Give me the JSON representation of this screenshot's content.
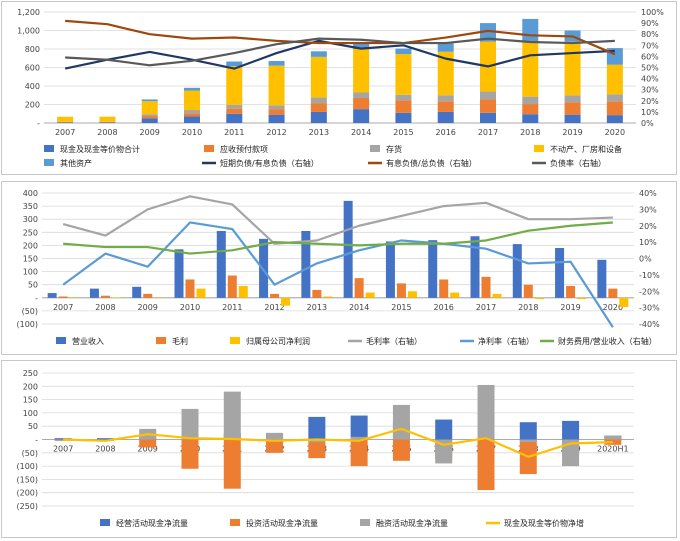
{
  "colors": {
    "blue": "#4472c4",
    "orange": "#ed7d31",
    "gray": "#a5a5a5",
    "yellow": "#ffc000",
    "lightblue": "#5b9bd5",
    "darkblue": "#203864",
    "rust": "#9e480e",
    "darkgray": "#595959",
    "green": "#70ad47"
  },
  "chart_data": [
    {
      "type": "bar",
      "stacked": true,
      "categories": [
        "2007",
        "2008",
        "2009",
        "2010",
        "2011",
        "2012",
        "2013",
        "2014",
        "2015",
        "2016",
        "2017",
        "2018",
        "2019",
        "2020"
      ],
      "y_ticks": [
        "-",
        "200",
        "400",
        "600",
        "800",
        "1,000",
        "1,200"
      ],
      "y2_ticks": [
        "0%",
        "10%",
        "20%",
        "30%",
        "40%",
        "50%",
        "60%",
        "70%",
        "80%",
        "90%",
        "100%"
      ],
      "ylim": [
        0,
        1200
      ],
      "y2lim": [
        0,
        1
      ],
      "grid": true,
      "legend_position": "bottom",
      "bar_series": [
        {
          "name": "现金及现金等价物合计",
          "color_key": "blue",
          "values": [
            5,
            5,
            50,
            70,
            100,
            90,
            120,
            150,
            110,
            120,
            110,
            95,
            90,
            85
          ]
        },
        {
          "name": "应收预付款项",
          "color_key": "orange",
          "values": [
            5,
            5,
            25,
            35,
            55,
            60,
            95,
            120,
            135,
            115,
            145,
            110,
            135,
            150
          ]
        },
        {
          "name": "存货",
          "color_key": "gray",
          "values": [
            3,
            3,
            20,
            35,
            40,
            40,
            60,
            60,
            60,
            65,
            85,
            80,
            75,
            75
          ]
        },
        {
          "name": "不动产、厂房和设备",
          "color_key": "yellow",
          "values": [
            55,
            55,
            140,
            210,
            420,
            430,
            440,
            470,
            440,
            470,
            540,
            600,
            580,
            320
          ]
        },
        {
          "name": "其他资产",
          "color_key": "lightblue",
          "values": [
            0,
            0,
            20,
            30,
            50,
            50,
            60,
            70,
            60,
            90,
            200,
            240,
            120,
            180
          ]
        }
      ],
      "line_series": [
        {
          "name": "短期负债/有息负债（右轴）",
          "color_key": "darkblue",
          "values": [
            0.49,
            0.57,
            0.64,
            0.57,
            0.49,
            0.63,
            0.74,
            0.67,
            0.7,
            0.58,
            0.51,
            0.61,
            0.63,
            0.65
          ]
        },
        {
          "name": "有息负债/总负债（右轴）",
          "color_key": "rust",
          "values": [
            0.92,
            0.89,
            0.8,
            0.76,
            0.77,
            0.74,
            0.72,
            0.72,
            0.72,
            0.77,
            0.83,
            0.79,
            0.78,
            0.62
          ]
        },
        {
          "name": "负债率（右轴）",
          "color_key": "darkgray",
          "values": [
            0.59,
            0.57,
            0.52,
            0.56,
            0.63,
            0.71,
            0.76,
            0.75,
            0.72,
            0.72,
            0.76,
            0.73,
            0.72,
            0.74
          ]
        }
      ]
    },
    {
      "type": "bar",
      "categories": [
        "2007",
        "2008",
        "2009",
        "2010",
        "2011",
        "2012",
        "2013",
        "2014",
        "2015",
        "2016",
        "2017",
        "2018",
        "2019",
        "2020"
      ],
      "y_ticks": [
        "400",
        "350",
        "300",
        "250",
        "200",
        "150",
        "100",
        "50",
        "-",
        "(50)",
        "(100)"
      ],
      "y2_ticks": [
        "40%",
        "30%",
        "20%",
        "10%",
        "0%",
        "-10%",
        "-20%",
        "-30%",
        "-40%"
      ],
      "ylim": [
        -100,
        400
      ],
      "y2lim": [
        -0.4,
        0.4
      ],
      "grid": true,
      "legend_position": "bottom",
      "bar_series": [
        {
          "name": "营业收入",
          "color_key": "blue",
          "values": [
            18,
            35,
            42,
            185,
            255,
            225,
            255,
            370,
            215,
            220,
            235,
            205,
            190,
            145
          ]
        },
        {
          "name": "毛利",
          "color_key": "orange",
          "values": [
            5,
            8,
            15,
            70,
            85,
            15,
            30,
            75,
            55,
            70,
            80,
            50,
            45,
            35
          ]
        },
        {
          "name": "归属母公司净利润",
          "color_key": "yellow",
          "values": [
            2,
            1,
            2,
            35,
            45,
            -30,
            5,
            20,
            25,
            20,
            15,
            -5,
            -5,
            -35
          ]
        }
      ],
      "line_series": [
        {
          "name": "毛利率（右轴）",
          "color_key": "gray",
          "values": [
            0.21,
            0.14,
            0.3,
            0.38,
            0.33,
            0.09,
            0.11,
            0.2,
            0.26,
            0.32,
            0.34,
            0.24,
            0.24,
            0.25
          ]
        },
        {
          "name": "净利率（右轴）",
          "color_key": "lightblue",
          "values": [
            -0.16,
            0.03,
            -0.05,
            0.22,
            0.18,
            -0.16,
            -0.03,
            0.05,
            0.11,
            0.09,
            0.06,
            -0.03,
            -0.02,
            -0.42
          ]
        },
        {
          "name": "财务费用/营业收入（右轴）",
          "color_key": "green",
          "values": [
            0.09,
            0.07,
            0.07,
            0.03,
            0.05,
            0.1,
            0.09,
            0.08,
            0.09,
            0.09,
            0.11,
            0.17,
            0.2,
            0.22
          ]
        }
      ]
    },
    {
      "type": "bar",
      "categories": [
        "2007",
        "2008",
        "2009",
        "2010",
        "2011",
        "2012",
        "2013",
        "2014",
        "2015",
        "2016",
        "2017",
        "2018",
        "2019",
        "2020H1"
      ],
      "y_ticks": [
        "250",
        "200",
        "150",
        "100",
        "50",
        "-",
        "(50)",
        "(100)",
        "(150)",
        "(200)",
        "(250)"
      ],
      "ylim": [
        -250,
        250
      ],
      "grid": true,
      "legend_position": "bottom",
      "bar_series": [
        {
          "name": "经营活动现金净流量",
          "color_key": "blue",
          "values": [
            5,
            5,
            15,
            75,
            25,
            20,
            85,
            90,
            65,
            75,
            85,
            65,
            70,
            15
          ]
        },
        {
          "name": "投资活动现金净流量",
          "color_key": "orange",
          "values": [
            -5,
            -5,
            -30,
            -110,
            -185,
            -50,
            -70,
            -100,
            -80,
            -75,
            -190,
            -130,
            -60,
            -20
          ]
        },
        {
          "name": "融资活动现金净流量",
          "color_key": "gray",
          "values": [
            0,
            0,
            40,
            115,
            180,
            25,
            -10,
            10,
            130,
            -90,
            205,
            -10,
            -100,
            15
          ]
        }
      ],
      "line_series": [
        {
          "name": "现金及现金等价物净增",
          "color_key": "yellow",
          "values": [
            0,
            -5,
            20,
            5,
            2,
            -5,
            0,
            -5,
            40,
            -20,
            5,
            -65,
            -15,
            -10
          ]
        }
      ]
    }
  ]
}
